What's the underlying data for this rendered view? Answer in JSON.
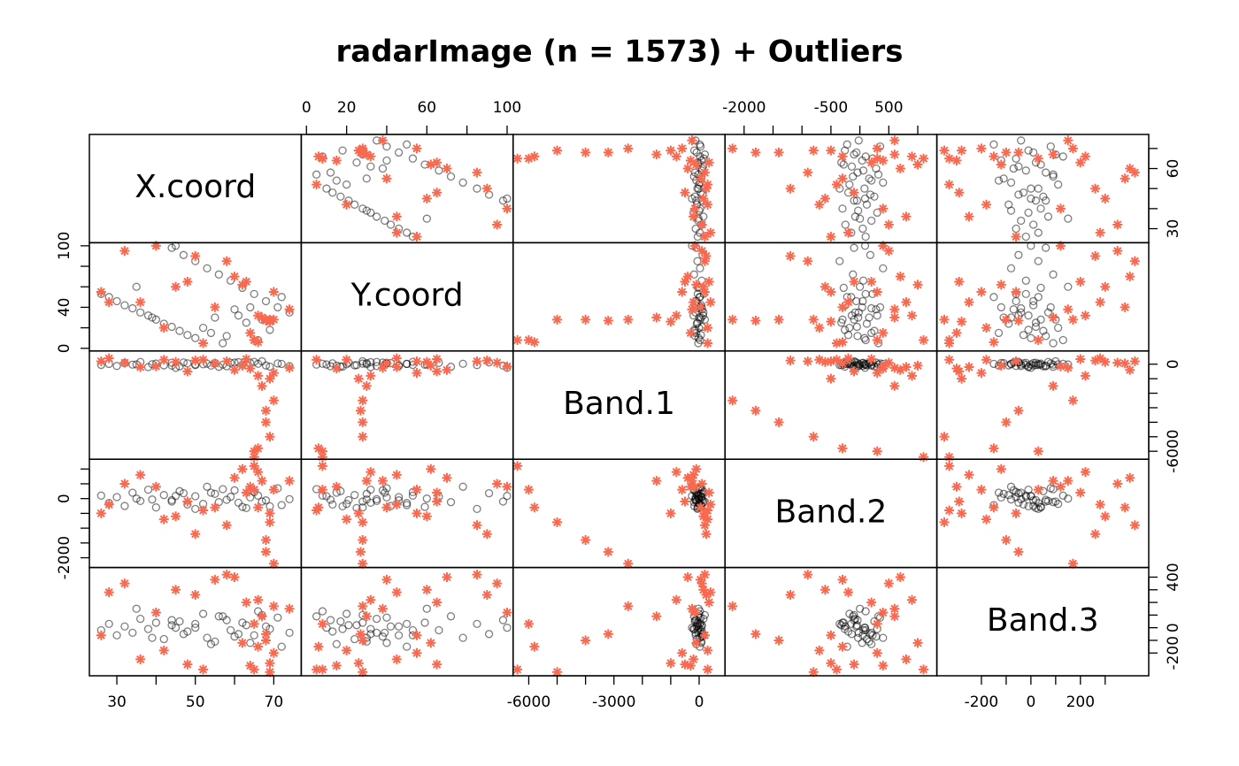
{
  "chart_data": {
    "type": "scatter_matrix",
    "title": "radarImage (n = 1573) + Outliers",
    "variables": [
      "X.coord",
      "Y.coord",
      "Band.1",
      "Band.2",
      "Band.3"
    ],
    "lims": [
      [
        23,
        77
      ],
      [
        -2.6,
        103
      ],
      [
        -6550,
        910
      ],
      [
        -2330,
        1330
      ],
      [
        -380,
        476
      ]
    ],
    "axes": [
      {
        "side": "bottom",
        "ticks": [
          30,
          40,
          50,
          60,
          70
        ],
        "labels": [
          30,
          50,
          70
        ]
      },
      {
        "side": "top",
        "ticks": [
          0,
          20,
          40,
          60,
          80,
          100
        ],
        "labels": [
          0,
          20,
          60,
          100
        ]
      },
      {
        "side": "bottom",
        "ticks": [
          -6000,
          -5000,
          -4000,
          -3000,
          -2000,
          -1000,
          0
        ],
        "labels": [
          -6000,
          -3000,
          0
        ]
      },
      {
        "side": "top",
        "ticks": [
          -2000,
          -1500,
          -1000,
          -500,
          0,
          500,
          1000
        ],
        "labels": [
          -2000,
          -500,
          500
        ]
      },
      {
        "side": "bottom",
        "ticks": [
          -200,
          -100,
          0,
          100,
          200,
          300
        ],
        "labels": [
          -200,
          0,
          200
        ]
      }
    ],
    "row_axes": [
      {
        "side": "right",
        "ticks": [
          30,
          40,
          50,
          60,
          70
        ],
        "labels": [
          30,
          60
        ]
      },
      {
        "side": "left",
        "ticks": [
          0,
          20,
          40,
          60,
          80,
          100
        ],
        "labels": [
          0,
          40,
          100
        ]
      },
      {
        "side": "right",
        "ticks": [
          -6000,
          -5000,
          -4000,
          -3000,
          -2000,
          -1000,
          0
        ],
        "labels": [
          -6000,
          0
        ]
      },
      {
        "side": "left",
        "ticks": [
          -2000,
          -1500,
          -1000,
          -500,
          0,
          500,
          1000
        ],
        "labels": [
          -2000,
          0
        ]
      },
      {
        "side": "right",
        "ticks": [
          -200,
          -100,
          0,
          100,
          200,
          300,
          400
        ],
        "labels": [
          -200,
          0,
          400
        ]
      }
    ],
    "series": [
      {
        "color": "#000000",
        "marker": "circle",
        "opacity": 0.5,
        "points": [
          [
            26,
            53,
            -50,
            100,
            -20
          ],
          [
            28,
            50,
            20,
            -150,
            30
          ],
          [
            30,
            46,
            -120,
            50,
            -60
          ],
          [
            32,
            42,
            80,
            -250,
            10
          ],
          [
            34,
            39,
            -30,
            200,
            -40
          ],
          [
            36,
            35,
            150,
            -80,
            70
          ],
          [
            38,
            32,
            -200,
            300,
            -10
          ],
          [
            40,
            28,
            40,
            -300,
            40
          ],
          [
            42,
            24,
            -80,
            120,
            -90
          ],
          [
            44,
            21,
            100,
            -50,
            20
          ],
          [
            46,
            17,
            -150,
            250,
            50
          ],
          [
            48,
            13,
            60,
            -200,
            -30
          ],
          [
            50,
            10,
            -20,
            80,
            0
          ],
          [
            44,
            98,
            -100,
            -100,
            60
          ],
          [
            47,
            91,
            120,
            180,
            -50
          ],
          [
            50,
            85,
            -60,
            -350,
            30
          ],
          [
            53,
            78,
            30,
            400,
            -80
          ],
          [
            56,
            72,
            -180,
            -120,
            90
          ],
          [
            59,
            66,
            90,
            60,
            -20
          ],
          [
            62,
            59,
            -40,
            -280,
            40
          ],
          [
            65,
            53,
            160,
            220,
            -60
          ],
          [
            68,
            46,
            -90,
            -60,
            10
          ],
          [
            71,
            40,
            50,
            350,
            80
          ],
          [
            74,
            35,
            -130,
            -20,
            -40
          ],
          [
            52,
            20,
            -10,
            -180,
            110
          ],
          [
            55,
            30,
            70,
            160,
            -110
          ],
          [
            58,
            12,
            -140,
            -40,
            60
          ],
          [
            60,
            38,
            110,
            280,
            -70
          ],
          [
            63,
            25,
            -60,
            -320,
            20
          ],
          [
            66,
            8,
            30,
            100,
            130
          ],
          [
            69,
            18,
            -170,
            -260,
            -10
          ],
          [
            64,
            40,
            80,
            40,
            -120
          ],
          [
            57,
            5,
            -30,
            320,
            90
          ],
          [
            61,
            32,
            140,
            -140,
            -50
          ],
          [
            35,
            60,
            -20,
            0,
            150
          ],
          [
            72,
            50,
            20,
            -220,
            -150
          ],
          [
            45,
            100,
            -250,
            90,
            0
          ],
          [
            67,
            28,
            200,
            -100,
            100
          ],
          [
            54,
            15,
            -100,
            200,
            -130
          ],
          [
            39,
            30,
            0,
            -30,
            -80
          ]
        ]
      },
      {
        "color": "#F8694F",
        "marker": "asterisk",
        "opacity": 1,
        "points": [
          [
            65,
            8,
            -6400,
            1100,
            -330
          ],
          [
            65,
            8,
            -6000,
            300,
            30
          ],
          [
            66,
            6,
            -5800,
            -300,
            -150
          ],
          [
            69,
            28,
            -5000,
            -800,
            -350
          ],
          [
            68,
            28,
            -4000,
            -1400,
            -100
          ],
          [
            68,
            27,
            -3200,
            -1800,
            -50
          ],
          [
            70,
            28,
            -2500,
            -2200,
            170
          ],
          [
            69,
            26,
            -1000,
            -500,
            -280
          ],
          [
            67,
            30,
            -1500,
            600,
            90
          ],
          [
            66,
            32,
            -800,
            900,
            220
          ],
          [
            32,
            95,
            100,
            500,
            350
          ],
          [
            58,
            85,
            200,
            -900,
            420
          ],
          [
            60,
            70,
            -400,
            700,
            400
          ],
          [
            45,
            60,
            150,
            -600,
            300
          ],
          [
            64,
            15,
            -300,
            400,
            -300
          ],
          [
            52,
            5,
            300,
            -400,
            -330
          ],
          [
            36,
            45,
            -200,
            800,
            -250
          ],
          [
            50,
            90,
            250,
            -1200,
            260
          ],
          [
            70,
            55,
            -600,
            300,
            -200
          ],
          [
            28,
            45,
            400,
            -200,
            280
          ],
          [
            62,
            62,
            -100,
            1000,
            -120
          ],
          [
            42,
            20,
            300,
            -700,
            -180
          ],
          [
            74,
            38,
            -250,
            600,
            150
          ],
          [
            55,
            40,
            50,
            -300,
            380
          ],
          [
            48,
            65,
            -500,
            -100,
            -290
          ],
          [
            63,
            65,
            350,
            200,
            200
          ],
          [
            26,
            55,
            200,
            -500,
            -60
          ],
          [
            40,
            100,
            -150,
            400,
            120
          ]
        ]
      }
    ]
  }
}
